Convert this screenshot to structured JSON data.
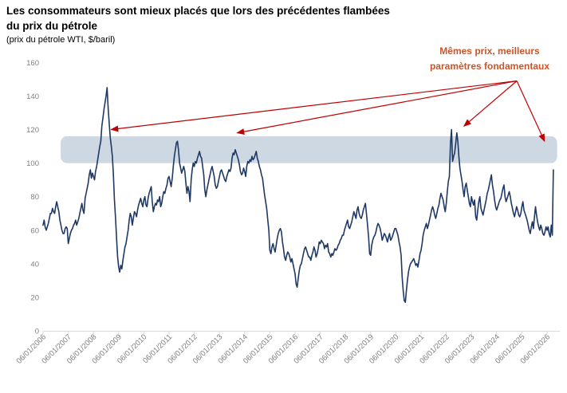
{
  "header": {
    "title_line1": "Les consommateurs sont mieux placés que lors des précédentes flambées",
    "title_line2": "du prix du pétrole",
    "subtitle": "(prix du pétrole WTI, $/baril)"
  },
  "annotation": {
    "line1": "Mêmes prix, meilleurs",
    "line2": "paramètres fondamentaux",
    "color": "#CC5429"
  },
  "chart_data": {
    "type": "line",
    "title": "Les consommateurs sont mieux placés que lors des précédentes flambées du prix du pétrole",
    "ylabel": "prix du pétrole WTI, $/baril",
    "xlabel": "",
    "ylim": [
      0,
      160
    ],
    "yticks": [
      0,
      20,
      40,
      60,
      80,
      100,
      120,
      140,
      160
    ],
    "x_tick_labels": [
      "06/01/2006",
      "06/01/2007",
      "06/01/2008",
      "06/01/2009",
      "06/01/2010",
      "06/01/2011",
      "06/01/2012",
      "06/01/2013",
      "06/01/2014",
      "06/01/2015",
      "06/01/2016",
      "06/01/2017",
      "06/01/2018",
      "06/01/2019",
      "06/01/2020",
      "06/01/2021",
      "06/01/2022",
      "06/01/2023",
      "06/01/2024",
      "06/01/2025",
      "06/01/2026"
    ],
    "x_start_year": 2006,
    "grid": false,
    "legend": "none",
    "line_color": "#1F3864",
    "axis_color": "#D9D9D9",
    "tick_label_color": "#7F7F7F",
    "highlight_band": {
      "value_from": 100,
      "value_to": 116,
      "year_from": 2006.7,
      "year_to": 2026.4,
      "color": "#CDD8E3"
    },
    "series": [
      {
        "name": "Prix du pétrole WTI ($/baril)",
        "points_per_year": 24,
        "values_by_year": {
          "2006": [
            63,
            66,
            62,
            60,
            62,
            64,
            67,
            70,
            70,
            73,
            71,
            70,
            74,
            77,
            74,
            71,
            66,
            63,
            60,
            58,
            58,
            61,
            62,
            61
          ],
          "2007": [
            52,
            55,
            58,
            60,
            61,
            63,
            64,
            66,
            63,
            65,
            67,
            70,
            73,
            76,
            72,
            70,
            79,
            82,
            85,
            88,
            93,
            96,
            91,
            94
          ],
          "2008": [
            92,
            90,
            95,
            98,
            102,
            106,
            110,
            113,
            122,
            127,
            132,
            136,
            140,
            145,
            133,
            124,
            115,
            110,
            104,
            93,
            78,
            67,
            55,
            44
          ],
          "2009": [
            38,
            35,
            39,
            37,
            42,
            46,
            50,
            52,
            56,
            60,
            66,
            70,
            68,
            63,
            67,
            71,
            70,
            68,
            72,
            75,
            77,
            79,
            76,
            74
          ],
          "2010": [
            78,
            80,
            75,
            74,
            79,
            82,
            84,
            86,
            77,
            71,
            74,
            76,
            75,
            78,
            77,
            80,
            74,
            76,
            80,
            83,
            82,
            85,
            87,
            91
          ],
          "2011": [
            92,
            89,
            86,
            91,
            98,
            104,
            108,
            112,
            113,
            108,
            100,
            97,
            94,
            96,
            98,
            95,
            88,
            82,
            86,
            83,
            77,
            90,
            96,
            100
          ],
          "2012": [
            98,
            101,
            100,
            103,
            105,
            107,
            104,
            103,
            98,
            93,
            84,
            80,
            84,
            87,
            90,
            93,
            96,
            98,
            95,
            92,
            87,
            85,
            86,
            89
          ],
          "2013": [
            92,
            95,
            96,
            94,
            92,
            90,
            89,
            92,
            94,
            96,
            95,
            97,
            103,
            106,
            105,
            108,
            106,
            104,
            102,
            99,
            95,
            93,
            94,
            97
          ],
          "2014": [
            95,
            92,
            98,
            101,
            100,
            102,
            101,
            104,
            102,
            103,
            105,
            107,
            103,
            101,
            98,
            96,
            93,
            91,
            86,
            81,
            77,
            73,
            66,
            60
          ],
          "2015": [
            48,
            46,
            50,
            52,
            49,
            47,
            51,
            55,
            58,
            60,
            61,
            59,
            53,
            49,
            44,
            42,
            45,
            47,
            46,
            44,
            41,
            43,
            40,
            37
          ],
          "2016": [
            34,
            28,
            26,
            31,
            36,
            39,
            40,
            43,
            46,
            49,
            50,
            48,
            46,
            44,
            44,
            42,
            45,
            47,
            50,
            48,
            44,
            46,
            49,
            53
          ],
          "2017": [
            52,
            54,
            53,
            52,
            49,
            51,
            50,
            52,
            47,
            46,
            44,
            46,
            45,
            47,
            49,
            48,
            49,
            51,
            52,
            54,
            55,
            57,
            57,
            60
          ],
          "2018": [
            62,
            64,
            66,
            62,
            61,
            63,
            65,
            68,
            71,
            69,
            67,
            72,
            74,
            70,
            68,
            67,
            69,
            72,
            74,
            76,
            70,
            63,
            56,
            46
          ],
          "2019": [
            45,
            51,
            54,
            56,
            57,
            59,
            62,
            64,
            63,
            61,
            58,
            54,
            56,
            58,
            57,
            55,
            53,
            56,
            58,
            54,
            55,
            57,
            59,
            61
          ],
          "2020": [
            61,
            59,
            57,
            53,
            50,
            45,
            32,
            24,
            18,
            17,
            24,
            30,
            35,
            38,
            40,
            41,
            42,
            43,
            41,
            39,
            40,
            38,
            42,
            46
          ],
          "2021": [
            48,
            52,
            57,
            60,
            62,
            64,
            61,
            63,
            66,
            69,
            72,
            74,
            72,
            69,
            67,
            70,
            73,
            75,
            79,
            82,
            80,
            78,
            74,
            71
          ],
          "2022": [
            76,
            83,
            89,
            92,
            112,
            120,
            101,
            104,
            106,
            112,
            118,
            113,
            104,
            97,
            93,
            89,
            84,
            80,
            86,
            88,
            84,
            80,
            76,
            74
          ],
          "2023": [
            80,
            77,
            75,
            78,
            68,
            66,
            72,
            77,
            80,
            73,
            71,
            69,
            72,
            75,
            78,
            82,
            84,
            87,
            90,
            93,
            87,
            83,
            78,
            74
          ],
          "2024": [
            72,
            74,
            76,
            78,
            79,
            82,
            85,
            87,
            80,
            77,
            79,
            81,
            83,
            80,
            76,
            73,
            70,
            68,
            71,
            74,
            72,
            69,
            68,
            70
          ],
          "2025": [
            74,
            77,
            72,
            70,
            68,
            66,
            63,
            60,
            58,
            62,
            65,
            61,
            68,
            74,
            69,
            65,
            62,
            60,
            63,
            61,
            58,
            57,
            59,
            62
          ],
          "2026": [
            60,
            62,
            58,
            56,
            63,
            57,
            96
          ]
        }
      }
    ],
    "annotation_arrows": {
      "color": "#C00000",
      "origin": [
        2024.8,
        149
      ],
      "targets": [
        [
          2008.7,
          120
        ],
        [
          2013.7,
          118
        ],
        [
          2022.7,
          122
        ],
        [
          2025.9,
          113
        ]
      ]
    }
  }
}
